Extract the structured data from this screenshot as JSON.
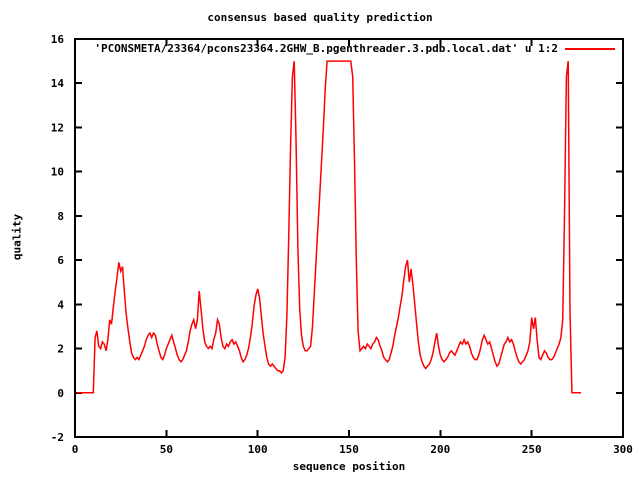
{
  "title": "consensus based quality prediction",
  "legend": {
    "label": "'PCONSMETA/23364/pcons23364.2GHW_B.pgenthreader.3.pdb.local.dat' u 1:2",
    "line_color": "#ff0000"
  },
  "colors": {
    "background": "#ffffff",
    "axis": "#000000",
    "series": "#ff0000"
  },
  "chart_data": {
    "type": "line",
    "title": "consensus based quality prediction",
    "xlabel": "sequence position",
    "ylabel": "quality",
    "xlim": [
      0,
      300
    ],
    "ylim": [
      -2,
      16
    ],
    "xticks": [
      0,
      50,
      100,
      150,
      200,
      250,
      300
    ],
    "yticks": [
      -2,
      0,
      2,
      4,
      6,
      8,
      10,
      12,
      14,
      16
    ],
    "grid": false,
    "legend_position": "top-right-inside",
    "tick_style": "inward-mirrored",
    "series": [
      {
        "name": "'PCONSMETA/23364/pcons23364.2GHW_B.pgenthreader.3.pdb.local.dat' u 1:2",
        "color": "#ff0000",
        "x_start": 1,
        "x_step": 1,
        "y": [
          0,
          0,
          0,
          0,
          0,
          0,
          0,
          0,
          0,
          0,
          2.5,
          2.8,
          2.1,
          2.0,
          2.3,
          2.2,
          1.9,
          2.4,
          3.3,
          3.1,
          3.9,
          4.6,
          5.2,
          5.9,
          5.5,
          5.7,
          4.6,
          3.6,
          2.9,
          2.3,
          1.8,
          1.6,
          1.5,
          1.6,
          1.5,
          1.7,
          1.9,
          2.1,
          2.4,
          2.6,
          2.7,
          2.5,
          2.7,
          2.6,
          2.2,
          1.9,
          1.6,
          1.5,
          1.7,
          2.0,
          2.2,
          2.4,
          2.6,
          2.3,
          2.0,
          1.7,
          1.5,
          1.4,
          1.5,
          1.7,
          1.9,
          2.3,
          2.8,
          3.1,
          3.3,
          2.9,
          3.3,
          4.6,
          3.8,
          2.9,
          2.3,
          2.1,
          2.0,
          2.1,
          2.0,
          2.4,
          2.7,
          3.3,
          3.1,
          2.5,
          2.1,
          2.0,
          2.2,
          2.1,
          2.3,
          2.4,
          2.2,
          2.3,
          2.1,
          1.9,
          1.6,
          1.4,
          1.5,
          1.7,
          2.0,
          2.5,
          3.1,
          3.9,
          4.4,
          4.7,
          4.3,
          3.5,
          2.7,
          2.1,
          1.6,
          1.3,
          1.2,
          1.3,
          1.2,
          1.1,
          1.0,
          1.0,
          0.9,
          1.0,
          1.6,
          3.5,
          7.0,
          11.0,
          14.3,
          15.0,
          11.5,
          6.5,
          3.8,
          2.6,
          2.1,
          1.9,
          1.9,
          2.0,
          2.1,
          3.0,
          4.5,
          6.0,
          7.5,
          9.0,
          10.5,
          12.0,
          13.8,
          15.0,
          15.0,
          15.0,
          15.0,
          15.0,
          15.0,
          15.0,
          15.0,
          15.0,
          15.0,
          15.0,
          15.0,
          15.0,
          15.0,
          14.3,
          10.5,
          6.0,
          2.8,
          1.9,
          2.0,
          2.1,
          2.0,
          2.2,
          2.1,
          2.0,
          2.2,
          2.3,
          2.5,
          2.4,
          2.1,
          1.9,
          1.6,
          1.5,
          1.4,
          1.5,
          1.8,
          2.1,
          2.6,
          3.0,
          3.4,
          3.9,
          4.4,
          5.1,
          5.7,
          6.0,
          5.0,
          5.6,
          4.9,
          4.0,
          3.1,
          2.3,
          1.7,
          1.4,
          1.2,
          1.1,
          1.2,
          1.3,
          1.5,
          1.8,
          2.3,
          2.7,
          2.1,
          1.7,
          1.5,
          1.4,
          1.5,
          1.6,
          1.8,
          1.9,
          1.8,
          1.7,
          1.9,
          2.1,
          2.3,
          2.2,
          2.4,
          2.2,
          2.3,
          2.1,
          1.8,
          1.6,
          1.5,
          1.5,
          1.7,
          2.0,
          2.4,
          2.6,
          2.4,
          2.2,
          2.3,
          2.0,
          1.7,
          1.4,
          1.2,
          1.3,
          1.6,
          1.9,
          2.2,
          2.3,
          2.5,
          2.3,
          2.4,
          2.2,
          1.9,
          1.6,
          1.4,
          1.3,
          1.4,
          1.5,
          1.7,
          1.9,
          2.3,
          3.4,
          2.9,
          3.4,
          2.4,
          1.6,
          1.5,
          1.7,
          1.9,
          1.8,
          1.6,
          1.5,
          1.5,
          1.6,
          1.8,
          2.0,
          2.2,
          2.5,
          3.3,
          8.0,
          14.3,
          15.0,
          3.7,
          0,
          0,
          0,
          0,
          0,
          0
        ]
      }
    ]
  }
}
